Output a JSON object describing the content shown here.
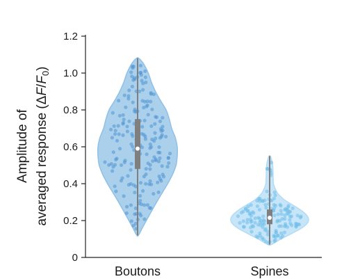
{
  "chart_data": {
    "type": "violin",
    "title": "",
    "xlabel": "",
    "ylabel_line1": "Amplitude of",
    "ylabel_line2_prefix": "averaged response (",
    "ylabel_delta": "Δ",
    "ylabel_F": "F",
    "ylabel_slash": "/",
    "ylabel_F0": "F",
    "ylabel_sub": "0",
    "ylabel_close": ")",
    "ylim": [
      0,
      1.2
    ],
    "yticks": [
      0,
      0.2,
      0.4,
      0.6,
      0.8,
      1.0,
      1.2
    ],
    "ytick_labels": [
      "0",
      "0.2",
      "0.4",
      "0.6",
      "0.8",
      "1.0",
      "1.2"
    ],
    "categories": [
      "Boutons",
      "Spines"
    ],
    "series": [
      {
        "category": "Boutons",
        "color": "#8fc0e6",
        "point_color": "#4f93d2",
        "min": 0.12,
        "max": 1.08,
        "q1": 0.48,
        "median": 0.59,
        "q3": 0.75,
        "density": [
          [
            0.12,
            0.02
          ],
          [
            0.16,
            0.12
          ],
          [
            0.2,
            0.22
          ],
          [
            0.25,
            0.35
          ],
          [
            0.3,
            0.48
          ],
          [
            0.35,
            0.62
          ],
          [
            0.4,
            0.76
          ],
          [
            0.45,
            0.88
          ],
          [
            0.5,
            0.97
          ],
          [
            0.55,
            1.0
          ],
          [
            0.6,
            1.0
          ],
          [
            0.65,
            0.95
          ],
          [
            0.7,
            0.86
          ],
          [
            0.75,
            0.8
          ],
          [
            0.8,
            0.72
          ],
          [
            0.85,
            0.58
          ],
          [
            0.9,
            0.45
          ],
          [
            0.95,
            0.35
          ],
          [
            1.0,
            0.27
          ],
          [
            1.05,
            0.15
          ],
          [
            1.08,
            0.03
          ]
        ]
      },
      {
        "category": "Spines",
        "color": "#b3dcf5",
        "point_color": "#6fbde8",
        "min": 0.07,
        "max": 0.55,
        "q1": 0.18,
        "median": 0.215,
        "q3": 0.26,
        "density": [
          [
            0.07,
            0.05
          ],
          [
            0.1,
            0.3
          ],
          [
            0.13,
            0.58
          ],
          [
            0.16,
            0.84
          ],
          [
            0.19,
            1.0
          ],
          [
            0.22,
            1.0
          ],
          [
            0.25,
            0.86
          ],
          [
            0.28,
            0.64
          ],
          [
            0.31,
            0.4
          ],
          [
            0.34,
            0.24
          ],
          [
            0.37,
            0.15
          ],
          [
            0.4,
            0.1
          ],
          [
            0.45,
            0.09
          ],
          [
            0.5,
            0.08
          ],
          [
            0.53,
            0.05
          ],
          [
            0.55,
            0.02
          ]
        ]
      }
    ]
  }
}
